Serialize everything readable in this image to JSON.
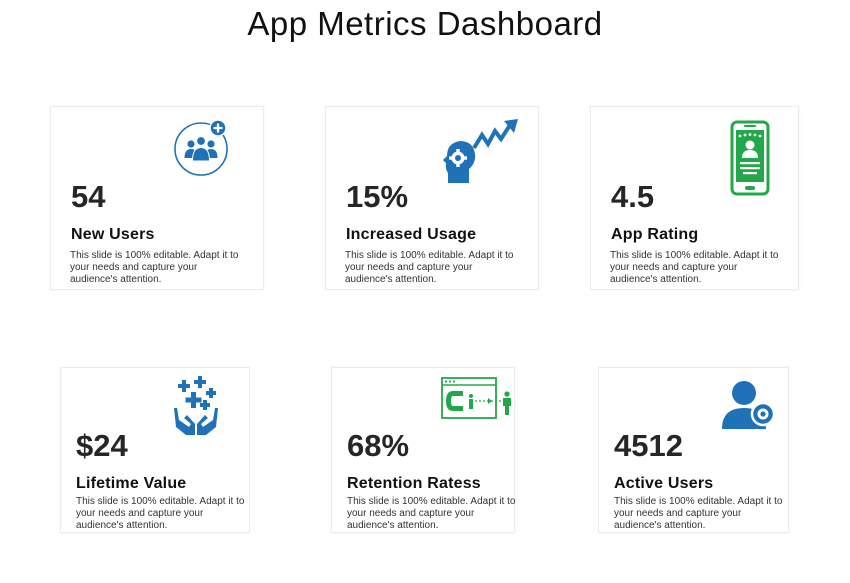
{
  "title": "App Metrics Dashboard",
  "colors": {
    "blue": "#1f72b8",
    "green": "#22a84a",
    "text": "#262626"
  },
  "cards": [
    {
      "value": "54",
      "label": "New Users",
      "description": "This slide is 100% editable. Adapt it to your needs and capture your audience's attention.",
      "icon": "add-user-group-icon"
    },
    {
      "value": "15%",
      "label": "Increased Usage",
      "description": "This slide is 100% editable. Adapt it to your needs and capture your audience's attention.",
      "icon": "head-gear-growth-icon"
    },
    {
      "value": "4.5",
      "label": "App Rating",
      "description": "This slide is 100% editable. Adapt it to your needs and capture your audience's attention.",
      "icon": "smartphone-rating-icon"
    },
    {
      "value": "$24",
      "label": "Lifetime  Value",
      "description": "This slide is 100% editable. Adapt it to your needs and capture your audience's attention.",
      "icon": "hands-crosses-icon"
    },
    {
      "value": "68%",
      "label": "Retention Ratess",
      "description": "This slide is 100% editable. Adapt it to your needs and capture your audience's attention.",
      "icon": "magnet-customer-icon"
    },
    {
      "value": "4512",
      "label": "Active  Users",
      "description": "This slide is 100% editable. Adapt it to your needs and capture your audience's attention.",
      "icon": "user-toggle-icon"
    }
  ]
}
